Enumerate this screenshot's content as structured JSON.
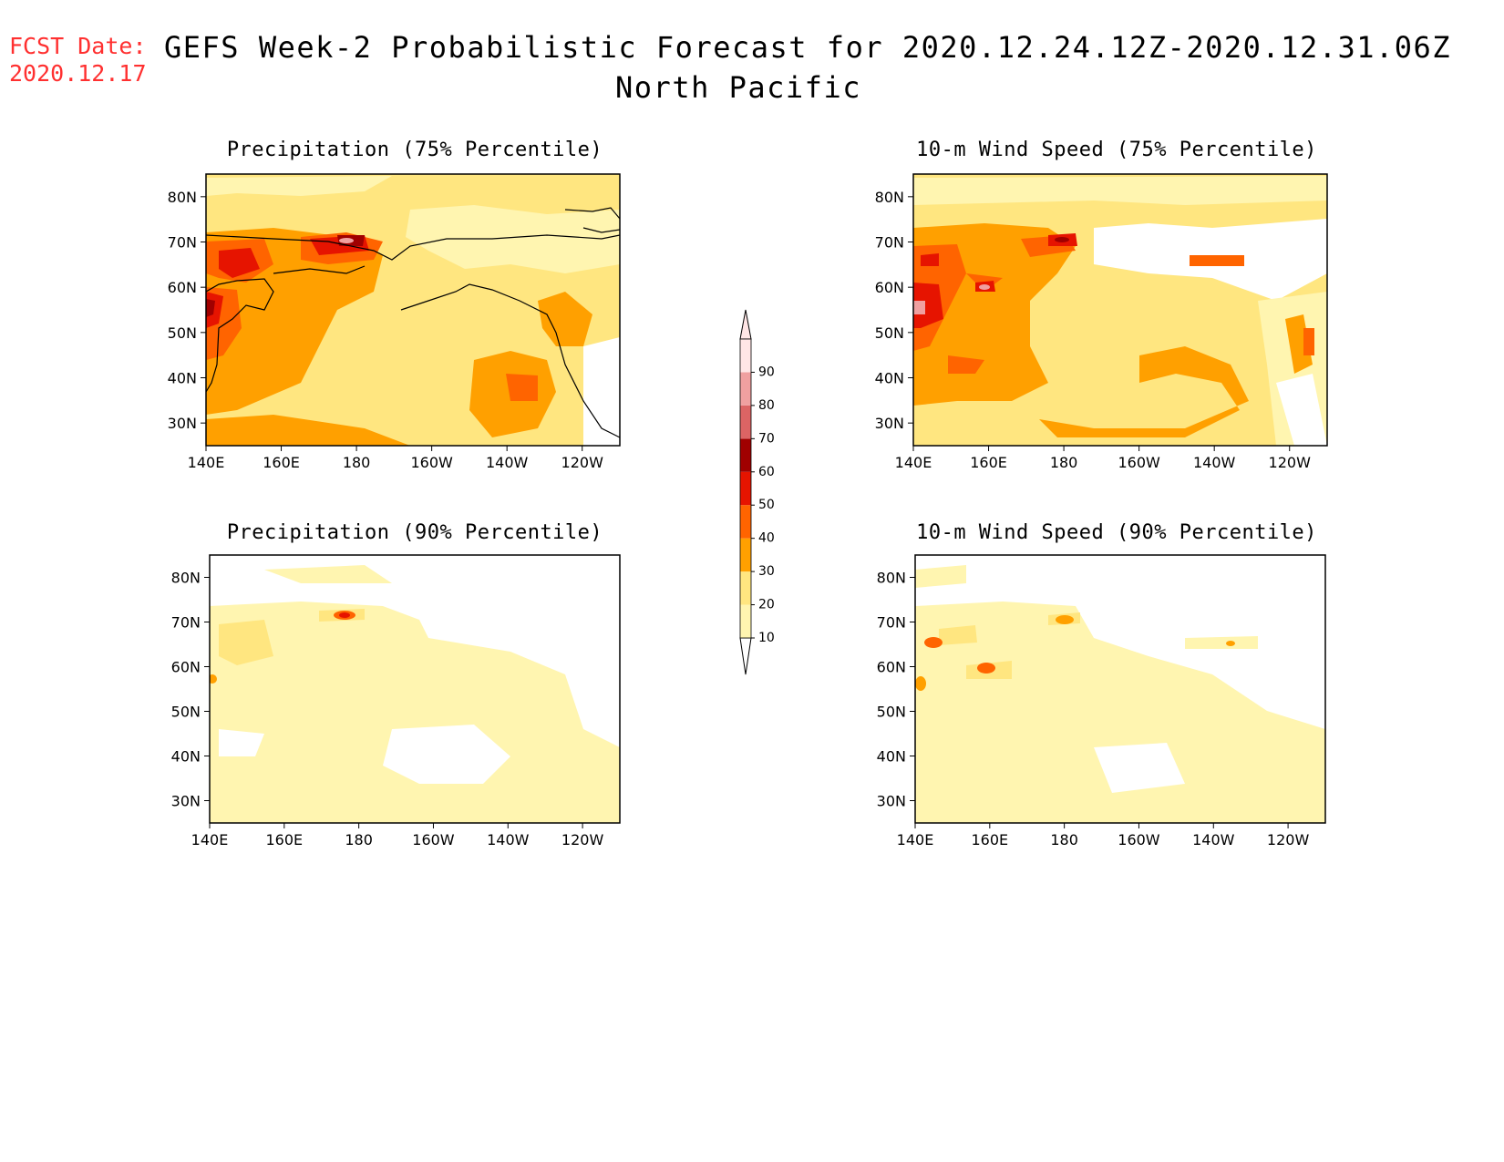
{
  "fcst_date": {
    "label": "FCST Date:",
    "value": "2020.12.17"
  },
  "header": {
    "title": "GEFS Week-2 Probabilistic Forecast for 2020.12.24.12Z-2020.12.31.06Z",
    "region": "North Pacific"
  },
  "axes": {
    "lon_ticks": [
      "140E",
      "160E",
      "180",
      "160W",
      "140W",
      "120W"
    ],
    "lat_ticks": [
      "80N",
      "70N",
      "60N",
      "50N",
      "40N",
      "30N"
    ],
    "lon_values": [
      140,
      160,
      180,
      200,
      220,
      240
    ],
    "lat_values": [
      80,
      70,
      60,
      50,
      40,
      30
    ],
    "lon_range": [
      140,
      250
    ],
    "lat_range": [
      25,
      85
    ]
  },
  "colorbar": {
    "levels": [
      "10",
      "20",
      "30",
      "40",
      "50",
      "60",
      "70",
      "80",
      "90"
    ],
    "colors": [
      "#fff5b0",
      "#ffe680",
      "#ffa000",
      "#ff6400",
      "#e61400",
      "#a00000",
      "#dc6464",
      "#f0a0a0",
      "#ffe6e6"
    ]
  },
  "panels": [
    {
      "id": "precip75",
      "title": "Precipitation (75% Percentile)"
    },
    {
      "id": "wind75",
      "title": "10-m Wind Speed (75% Percentile)"
    },
    {
      "id": "precip90",
      "title": "Precipitation (90% Percentile)"
    },
    {
      "id": "wind90",
      "title": "10-m Wind Speed (90% Percentile)"
    }
  ]
}
